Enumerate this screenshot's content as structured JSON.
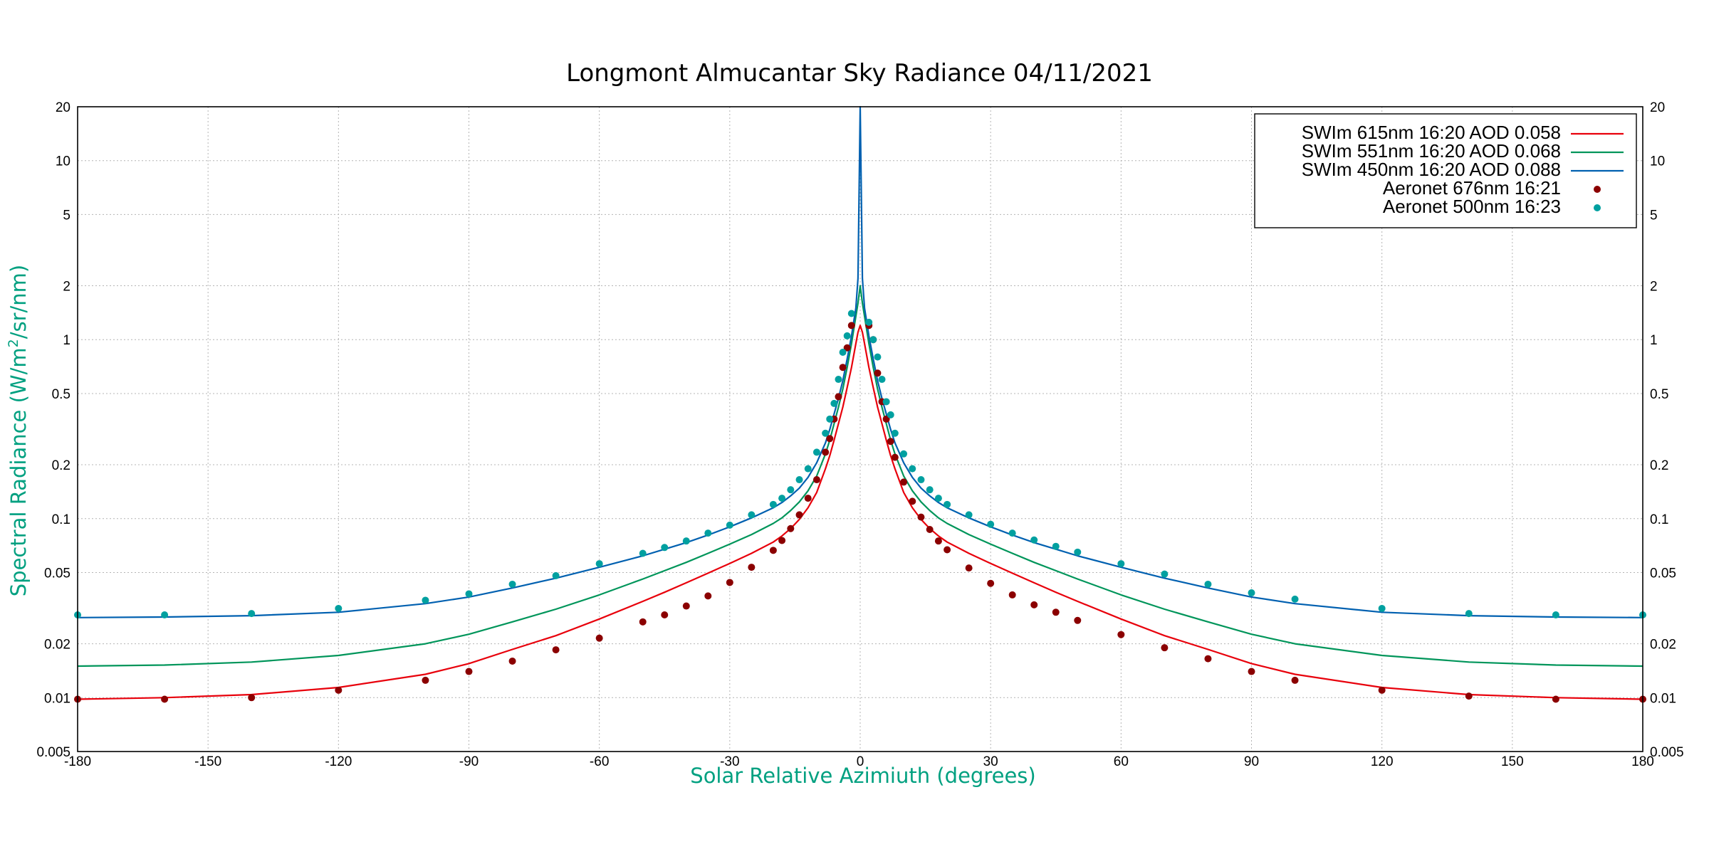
{
  "chart_data": {
    "type": "line",
    "title": "Longmont Almucantar Sky Radiance 04/11/2021",
    "xlabel": "Solar Relative Azimiuth (degrees)",
    "ylabel": "Spectral Radiance (W/m²/sr/nm)",
    "ylabel_parts": {
      "before": "Spectral Radiance (W/m",
      "sup": "2",
      "after": "/sr/nm)"
    },
    "xlim": [
      -180,
      180
    ],
    "ylim": [
      0.005,
      20
    ],
    "yscale": "log",
    "grid": true,
    "legend_position": "top-right",
    "x_ticks": [
      "-180",
      "-150",
      "-120",
      "-90",
      "-60",
      "-30",
      "0",
      "30",
      "60",
      "90",
      "120",
      "150",
      "180"
    ],
    "x_tick_values": [
      -180,
      -150,
      -120,
      -90,
      -60,
      -30,
      0,
      30,
      60,
      90,
      120,
      150,
      180
    ],
    "y_ticks": [
      "0.005",
      "0.01",
      "0.02",
      "0.05",
      "0.1",
      "0.2",
      "0.5",
      "1",
      "2",
      "5",
      "10",
      "20"
    ],
    "y_tick_values": [
      0.005,
      0.01,
      0.02,
      0.05,
      0.1,
      0.2,
      0.5,
      1,
      2,
      5,
      10,
      20
    ],
    "x": [
      -180,
      -160,
      -140,
      -120,
      -100,
      -90,
      -80,
      -70,
      -60,
      -50,
      -45,
      -40,
      -35,
      -30,
      -25,
      -20,
      -18,
      -16,
      -14,
      -12,
      -10,
      -8,
      -7,
      -6,
      -5,
      -4,
      -3,
      -2,
      -1,
      -0.5,
      0,
      0.5,
      1,
      2,
      3,
      4,
      5,
      6,
      7,
      8,
      10,
      12,
      14,
      16,
      18,
      20,
      25,
      30,
      35,
      40,
      45,
      50,
      60,
      70,
      80,
      90,
      100,
      120,
      140,
      160,
      180
    ],
    "series": [
      {
        "name": "SWIm 615nm 16:20  AOD   0.058",
        "kind": "line",
        "color": "#e8000b",
        "values": [
          0.0098,
          0.01,
          0.0104,
          0.0114,
          0.0135,
          0.0155,
          0.0186,
          0.0222,
          0.0275,
          0.0345,
          0.0388,
          0.0438,
          0.0496,
          0.0562,
          0.064,
          0.074,
          0.08,
          0.088,
          0.099,
          0.115,
          0.14,
          0.19,
          0.225,
          0.275,
          0.34,
          0.42,
          0.54,
          0.7,
          0.95,
          1.1,
          1.2,
          1.1,
          0.95,
          0.7,
          0.54,
          0.42,
          0.34,
          0.275,
          0.225,
          0.19,
          0.14,
          0.115,
          0.099,
          0.088,
          0.08,
          0.074,
          0.064,
          0.0562,
          0.0496,
          0.0438,
          0.0388,
          0.0345,
          0.0275,
          0.0222,
          0.0186,
          0.0155,
          0.0135,
          0.0114,
          0.0104,
          0.01,
          0.0098
        ]
      },
      {
        "name": "SWIm 551nm 16:20  AOD   0.068",
        "kind": "line",
        "color": "#00955a",
        "values": [
          0.015,
          0.0152,
          0.0158,
          0.0172,
          0.02,
          0.0226,
          0.0265,
          0.0312,
          0.0375,
          0.046,
          0.0512,
          0.057,
          0.064,
          0.072,
          0.0815,
          0.094,
          0.101,
          0.111,
          0.124,
          0.143,
          0.173,
          0.23,
          0.275,
          0.34,
          0.42,
          0.53,
          0.7,
          0.95,
          1.35,
          1.6,
          2.0,
          1.6,
          1.35,
          0.95,
          0.7,
          0.53,
          0.42,
          0.34,
          0.275,
          0.23,
          0.173,
          0.143,
          0.124,
          0.111,
          0.101,
          0.094,
          0.0815,
          0.072,
          0.064,
          0.057,
          0.0512,
          0.046,
          0.0375,
          0.0312,
          0.0265,
          0.0226,
          0.02,
          0.0172,
          0.0158,
          0.0152,
          0.015
        ]
      },
      {
        "name": "SWIm 450nm 16:20  AOD   0.088",
        "kind": "line",
        "color": "#0060b0",
        "values": [
          0.028,
          0.0282,
          0.0287,
          0.03,
          0.0335,
          0.0365,
          0.041,
          0.0465,
          0.0535,
          0.062,
          0.0675,
          0.0735,
          0.081,
          0.09,
          0.101,
          0.115,
          0.123,
          0.134,
          0.148,
          0.17,
          0.205,
          0.265,
          0.315,
          0.385,
          0.47,
          0.59,
          0.78,
          1.05,
          1.5,
          2.2,
          20,
          2.2,
          1.5,
          1.05,
          0.78,
          0.59,
          0.47,
          0.385,
          0.315,
          0.265,
          0.205,
          0.17,
          0.148,
          0.134,
          0.123,
          0.115,
          0.101,
          0.09,
          0.081,
          0.0735,
          0.0675,
          0.062,
          0.0535,
          0.0465,
          0.041,
          0.0365,
          0.0335,
          0.03,
          0.0287,
          0.0282,
          0.028
        ]
      }
    ],
    "scatter_series": [
      {
        "name": "Aeronet 676nm 16:21",
        "kind": "scatter",
        "color": "#8b0000",
        "points": [
          [
            -180,
            0.0098
          ],
          [
            -160,
            0.0098
          ],
          [
            -140,
            0.01
          ],
          [
            -120,
            0.011
          ],
          [
            -100,
            0.0125
          ],
          [
            -90,
            0.014
          ],
          [
            -80,
            0.016
          ],
          [
            -70,
            0.0185
          ],
          [
            -60,
            0.0215
          ],
          [
            -50,
            0.0265
          ],
          [
            -45,
            0.029
          ],
          [
            -40,
            0.0325
          ],
          [
            -35,
            0.037
          ],
          [
            -30,
            0.044
          ],
          [
            -25,
            0.0535
          ],
          [
            -20,
            0.0665
          ],
          [
            -18,
            0.0755
          ],
          [
            -16,
            0.088
          ],
          [
            -14,
            0.105
          ],
          [
            -12,
            0.13
          ],
          [
            -10,
            0.165
          ],
          [
            -8,
            0.235
          ],
          [
            -7,
            0.28
          ],
          [
            -6,
            0.36
          ],
          [
            -5,
            0.48
          ],
          [
            -4,
            0.7
          ],
          [
            -3,
            0.9
          ],
          [
            -2,
            1.2
          ],
          [
            2,
            1.2
          ],
          [
            3,
            1.0
          ],
          [
            4,
            0.65
          ],
          [
            5,
            0.45
          ],
          [
            6,
            0.36
          ],
          [
            7,
            0.27
          ],
          [
            8,
            0.22
          ],
          [
            10,
            0.16
          ],
          [
            12,
            0.125
          ],
          [
            14,
            0.102
          ],
          [
            16,
            0.087
          ],
          [
            18,
            0.075
          ],
          [
            20,
            0.067
          ],
          [
            25,
            0.053
          ],
          [
            30,
            0.0435
          ],
          [
            35,
            0.0375
          ],
          [
            40,
            0.033
          ],
          [
            45,
            0.03
          ],
          [
            50,
            0.027
          ],
          [
            60,
            0.0225
          ],
          [
            70,
            0.019
          ],
          [
            80,
            0.0165
          ],
          [
            90,
            0.014
          ],
          [
            100,
            0.0125
          ],
          [
            120,
            0.011
          ],
          [
            140,
            0.0102
          ],
          [
            160,
            0.0098
          ],
          [
            180,
            0.0098
          ]
        ]
      },
      {
        "name": "Aeronet 500nm 16:23",
        "kind": "scatter",
        "color": "#00a0a0",
        "points": [
          [
            -180,
            0.029
          ],
          [
            -160,
            0.029
          ],
          [
            -140,
            0.0295
          ],
          [
            -120,
            0.0315
          ],
          [
            -100,
            0.035
          ],
          [
            -90,
            0.038
          ],
          [
            -80,
            0.043
          ],
          [
            -70,
            0.048
          ],
          [
            -60,
            0.056
          ],
          [
            -50,
            0.064
          ],
          [
            -45,
            0.069
          ],
          [
            -40,
            0.075
          ],
          [
            -35,
            0.083
          ],
          [
            -30,
            0.092
          ],
          [
            -25,
            0.105
          ],
          [
            -20,
            0.12
          ],
          [
            -18,
            0.13
          ],
          [
            -16,
            0.145
          ],
          [
            -14,
            0.165
          ],
          [
            -12,
            0.19
          ],
          [
            -10,
            0.235
          ],
          [
            -8,
            0.3
          ],
          [
            -7,
            0.36
          ],
          [
            -6,
            0.44
          ],
          [
            -5,
            0.6
          ],
          [
            -4,
            0.85
          ],
          [
            -3,
            1.05
          ],
          [
            -2,
            1.4
          ],
          [
            2,
            1.25
          ],
          [
            3,
            1.0
          ],
          [
            4,
            0.8
          ],
          [
            5,
            0.6
          ],
          [
            6,
            0.45
          ],
          [
            7,
            0.38
          ],
          [
            8,
            0.3
          ],
          [
            10,
            0.23
          ],
          [
            12,
            0.19
          ],
          [
            14,
            0.165
          ],
          [
            16,
            0.145
          ],
          [
            18,
            0.13
          ],
          [
            20,
            0.12
          ],
          [
            25,
            0.105
          ],
          [
            30,
            0.093
          ],
          [
            35,
            0.083
          ],
          [
            40,
            0.076
          ],
          [
            45,
            0.07
          ],
          [
            50,
            0.065
          ],
          [
            60,
            0.056
          ],
          [
            70,
            0.049
          ],
          [
            80,
            0.043
          ],
          [
            90,
            0.0385
          ],
          [
            100,
            0.0355
          ],
          [
            120,
            0.0315
          ],
          [
            140,
            0.0295
          ],
          [
            160,
            0.029
          ],
          [
            180,
            0.029
          ]
        ]
      }
    ]
  }
}
